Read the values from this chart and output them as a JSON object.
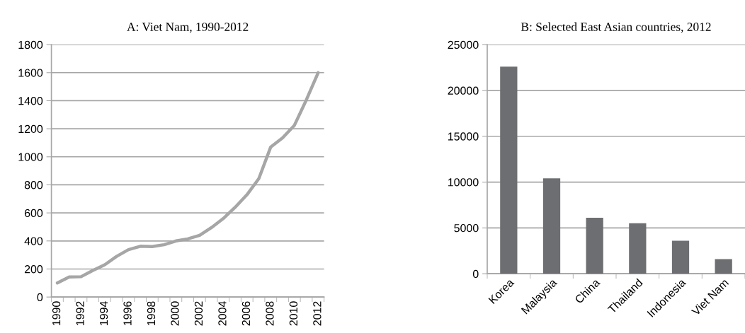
{
  "chart_data": [
    {
      "type": "line",
      "title": "A: Viet Nam, 1990-2012",
      "categories": [
        "1990",
        null,
        "1992",
        null,
        "1994",
        null,
        "1996",
        null,
        "1998",
        null,
        "2000",
        null,
        "2002",
        null,
        "2004",
        null,
        "2006",
        null,
        "2008",
        null,
        "2010",
        null,
        "2012"
      ],
      "series": [
        {
          "color": "#a6a6a6",
          "values": [
            100,
            143,
            145,
            190,
            230,
            290,
            338,
            362,
            360,
            373,
            400,
            415,
            440,
            495,
            560,
            640,
            730,
            845,
            1070,
            1135,
            1225,
            1405,
            1600
          ]
        }
      ],
      "ylim": [
        0,
        1800
      ],
      "yticks": [
        0,
        200,
        400,
        600,
        800,
        1000,
        1200,
        1400,
        1600,
        1800
      ],
      "grid": "y",
      "marker": "none",
      "line_style": "solid"
    },
    {
      "type": "bar",
      "title": "B: Selected East Asian countries, 2012",
      "categories": [
        "Korea",
        "Malaysia",
        "China",
        "Thailand",
        "Indonesia",
        "Viet Nam"
      ],
      "series": [
        {
          "color": "#6d6e71",
          "values": [
            22600,
            10400,
            6100,
            5500,
            3600,
            1600
          ]
        }
      ],
      "ylim": [
        0,
        25000
      ],
      "yticks": [
        0,
        5000,
        10000,
        15000,
        20000,
        25000
      ],
      "grid": "y"
    }
  ]
}
